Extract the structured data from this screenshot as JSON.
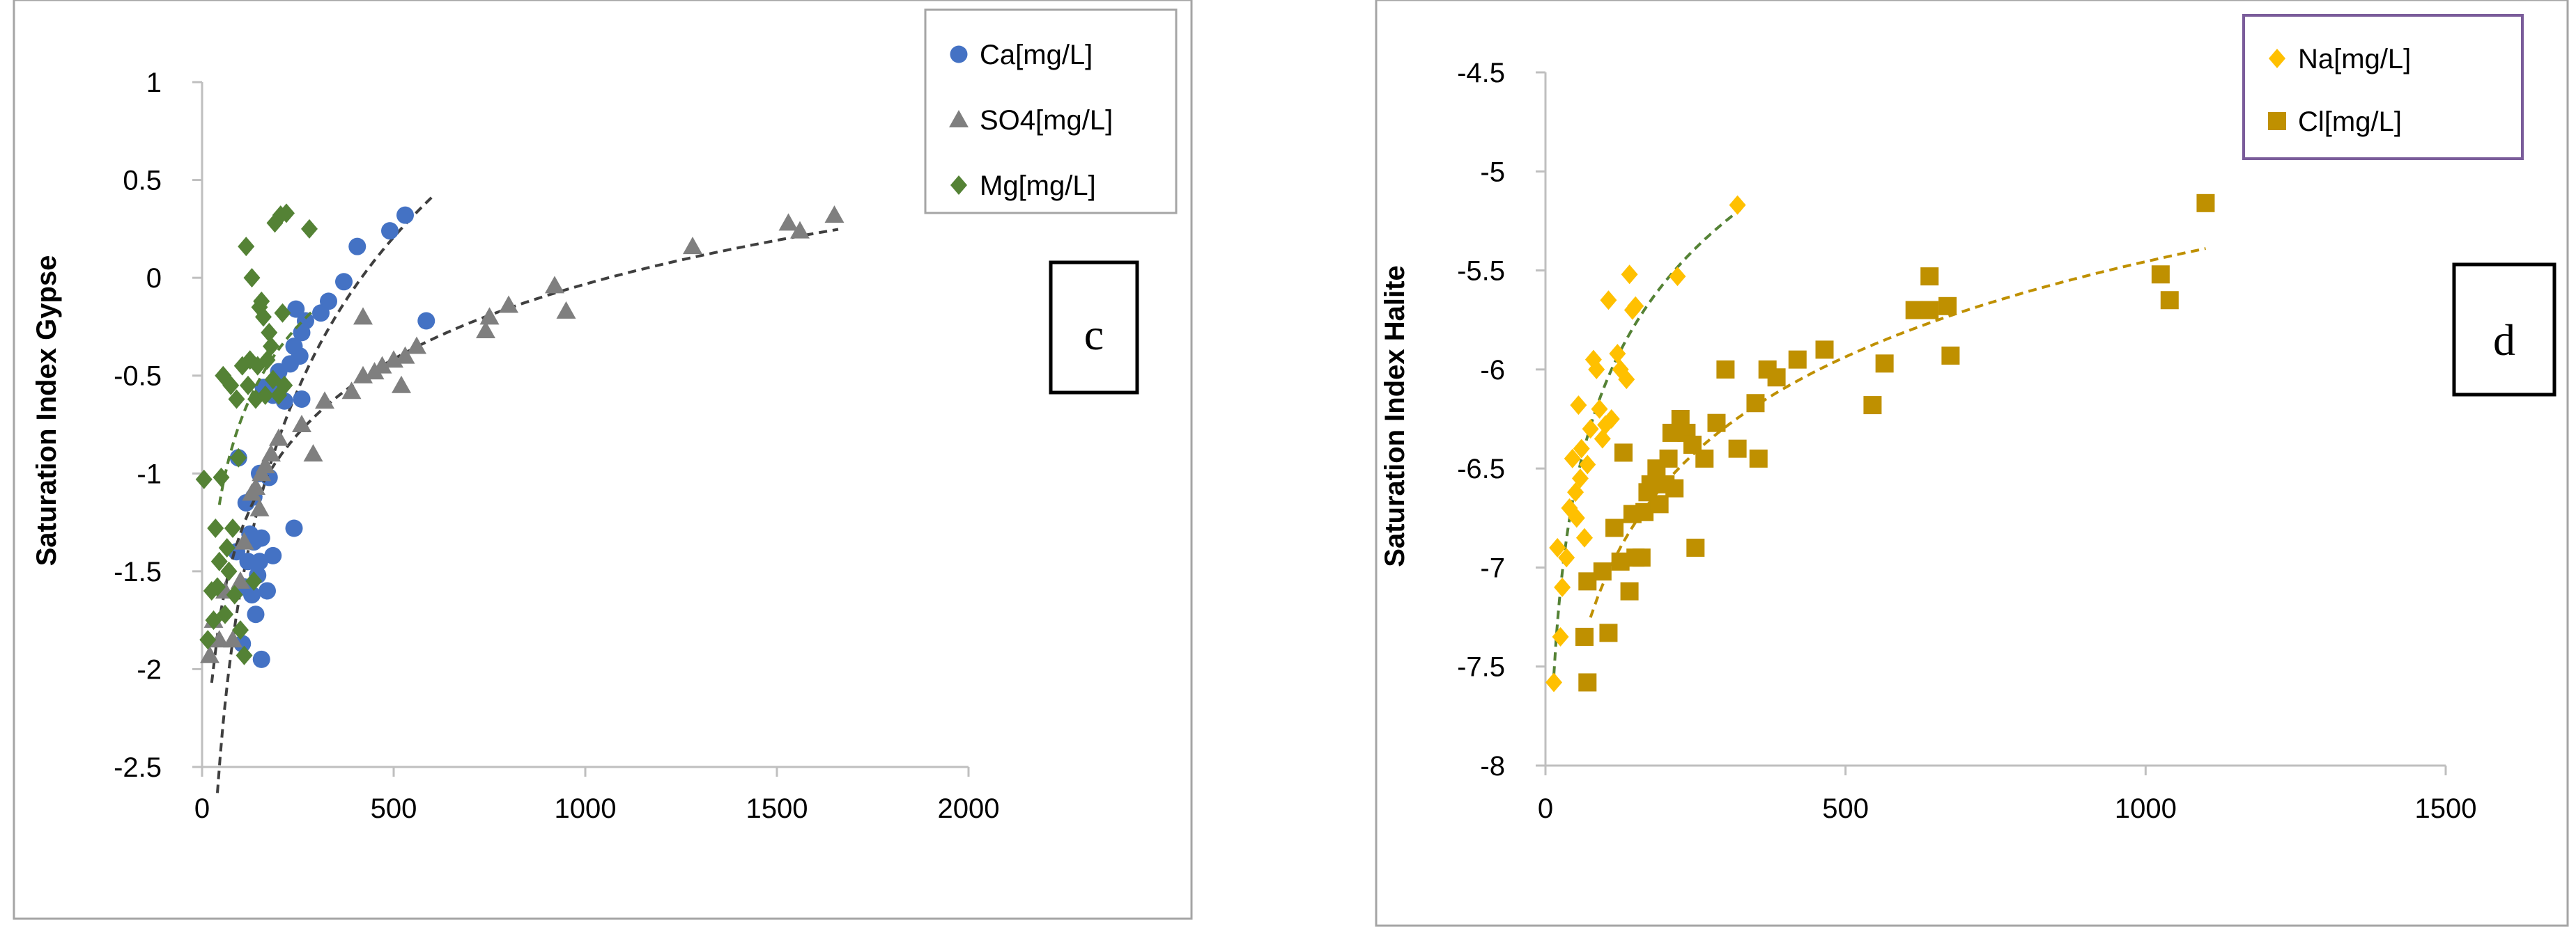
{
  "chart_data": [
    {
      "type": "scatter",
      "panel_label": "c",
      "title": "",
      "xlabel": "",
      "ylabel": "Saturation Index Gypse",
      "xlim": [
        0,
        2000
      ],
      "ylim": [
        -2.5,
        1
      ],
      "x_ticks": [
        0,
        500,
        1000,
        1500,
        2000
      ],
      "y_ticks": [
        -2.5,
        -2,
        -1.5,
        -1,
        -0.5,
        0,
        0.5,
        1
      ],
      "x_tick_labels": [
        "0",
        "500",
        "1000",
        "1500",
        "2000"
      ],
      "y_tick_labels": [
        "-2.5",
        "-2",
        "-1.5",
        "-1",
        "-0.5",
        "0",
        "0.5",
        "1"
      ],
      "grid": false,
      "legend_position": "top-right",
      "series": [
        {
          "name": "Ca[mg/L]",
          "marker": "circle",
          "color": "#4472C4",
          "trend_color": "#3F3F3F",
          "trend_x_range": [
            40,
            600
          ],
          "points": [
            [
              105,
              -1.87
            ],
            [
              130,
              -1.62
            ],
            [
              110,
              -1.58
            ],
            [
              155,
              -1.95
            ],
            [
              170,
              -1.6
            ],
            [
              140,
              -1.72
            ],
            [
              145,
              -1.52
            ],
            [
              120,
              -1.45
            ],
            [
              150,
              -1.45
            ],
            [
              185,
              -1.42
            ],
            [
              90,
              -1.4
            ],
            [
              135,
              -1.35
            ],
            [
              155,
              -1.33
            ],
            [
              125,
              -1.31
            ],
            [
              240,
              -1.28
            ],
            [
              115,
              -1.15
            ],
            [
              135,
              -1.12
            ],
            [
              175,
              -1.02
            ],
            [
              150,
              -1.0
            ],
            [
              95,
              -0.92
            ],
            [
              215,
              -0.63
            ],
            [
              185,
              -0.6
            ],
            [
              260,
              -0.62
            ],
            [
              160,
              -0.56
            ],
            [
              195,
              -0.55
            ],
            [
              200,
              -0.48
            ],
            [
              230,
              -0.44
            ],
            [
              255,
              -0.4
            ],
            [
              240,
              -0.35
            ],
            [
              260,
              -0.28
            ],
            [
              270,
              -0.22
            ],
            [
              310,
              -0.18
            ],
            [
              330,
              -0.12
            ],
            [
              245,
              -0.16
            ],
            [
              370,
              -0.02
            ],
            [
              405,
              0.16
            ],
            [
              490,
              0.24
            ],
            [
              530,
              0.32
            ],
            [
              585,
              -0.22
            ]
          ]
        },
        {
          "name": "SO4[mg/L]",
          "marker": "triangle",
          "color": "#7F7F7F",
          "trend_color": "#3F3F3F",
          "trend_x_range": [
            25,
            1660
          ],
          "points": [
            [
              20,
              -1.93
            ],
            [
              30,
              -1.75
            ],
            [
              45,
              -1.85
            ],
            [
              60,
              -1.6
            ],
            [
              80,
              -1.85
            ],
            [
              100,
              -1.55
            ],
            [
              110,
              -1.35
            ],
            [
              130,
              -1.1
            ],
            [
              150,
              -1.18
            ],
            [
              140,
              -1.07
            ],
            [
              155,
              -1.0
            ],
            [
              165,
              -0.96
            ],
            [
              180,
              -0.9
            ],
            [
              200,
              -0.82
            ],
            [
              260,
              -0.75
            ],
            [
              290,
              -0.9
            ],
            [
              320,
              -0.63
            ],
            [
              390,
              -0.58
            ],
            [
              420,
              -0.5
            ],
            [
              450,
              -0.48
            ],
            [
              470,
              -0.45
            ],
            [
              500,
              -0.42
            ],
            [
              520,
              -0.55
            ],
            [
              530,
              -0.4
            ],
            [
              560,
              -0.35
            ],
            [
              420,
              -0.2
            ],
            [
              740,
              -0.27
            ],
            [
              750,
              -0.2
            ],
            [
              800,
              -0.14
            ],
            [
              920,
              -0.04
            ],
            [
              950,
              -0.17
            ],
            [
              1280,
              0.16
            ],
            [
              1530,
              0.28
            ],
            [
              1560,
              0.24
            ],
            [
              1650,
              0.32
            ]
          ]
        },
        {
          "name": "Mg[mg/L]",
          "marker": "diamond",
          "color": "#548235",
          "trend_color": "#548235",
          "trend_x_range": [
            45,
            290
          ],
          "points": [
            [
              5,
              -1.03
            ],
            [
              15,
              -1.85
            ],
            [
              25,
              -1.6
            ],
            [
              30,
              -1.75
            ],
            [
              35,
              -1.28
            ],
            [
              40,
              -1.58
            ],
            [
              45,
              -1.45
            ],
            [
              50,
              -1.02
            ],
            [
              55,
              -0.5
            ],
            [
              60,
              -1.72
            ],
            [
              65,
              -1.38
            ],
            [
              70,
              -1.5
            ],
            [
              75,
              -0.55
            ],
            [
              80,
              -1.28
            ],
            [
              85,
              -1.62
            ],
            [
              90,
              -0.62
            ],
            [
              95,
              -0.92
            ],
            [
              100,
              -1.8
            ],
            [
              105,
              -0.45
            ],
            [
              110,
              -1.93
            ],
            [
              115,
              0.16
            ],
            [
              120,
              -0.55
            ],
            [
              125,
              -0.42
            ],
            [
              130,
              0.0
            ],
            [
              135,
              -1.55
            ],
            [
              140,
              -0.62
            ],
            [
              145,
              -0.45
            ],
            [
              150,
              -0.15
            ],
            [
              155,
              -0.12
            ],
            [
              160,
              -0.2
            ],
            [
              165,
              -0.6
            ],
            [
              170,
              -0.42
            ],
            [
              175,
              -0.28
            ],
            [
              180,
              -0.35
            ],
            [
              185,
              -0.52
            ],
            [
              190,
              0.28
            ],
            [
              200,
              -0.6
            ],
            [
              205,
              0.32
            ],
            [
              210,
              -0.18
            ],
            [
              215,
              -0.55
            ],
            [
              220,
              0.33
            ],
            [
              280,
              0.25
            ]
          ]
        }
      ]
    },
    {
      "type": "scatter",
      "panel_label": "d",
      "title": "",
      "xlabel": "",
      "ylabel": "Saturation Index Halite",
      "xlim": [
        0,
        1500
      ],
      "ylim": [
        -8,
        -4.5
      ],
      "x_ticks": [
        0,
        500,
        1000,
        1500
      ],
      "y_ticks": [
        -8,
        -7.5,
        -7,
        -6.5,
        -6,
        -5.5,
        -5,
        -4.5
      ],
      "x_tick_labels": [
        "0",
        "500",
        "1000",
        "1500"
      ],
      "y_tick_labels": [
        "-8",
        "-7.5",
        "-7",
        "-6.5",
        "-6",
        "-5.5",
        "-5",
        "-4.5"
      ],
      "grid": false,
      "legend_position": "top-right",
      "series": [
        {
          "name": "Na[mg/L]",
          "marker": "diamond",
          "color": "#FFC000",
          "trend_color": "#548235",
          "trend_x_range": [
            14,
            325
          ],
          "points": [
            [
              14,
              -7.58
            ],
            [
              20,
              -6.9
            ],
            [
              25,
              -7.35
            ],
            [
              28,
              -7.1
            ],
            [
              35,
              -6.95
            ],
            [
              40,
              -6.7
            ],
            [
              45,
              -6.45
            ],
            [
              50,
              -6.62
            ],
            [
              52,
              -6.75
            ],
            [
              55,
              -6.18
            ],
            [
              58,
              -6.55
            ],
            [
              60,
              -6.4
            ],
            [
              65,
              -6.85
            ],
            [
              70,
              -6.48
            ],
            [
              75,
              -6.3
            ],
            [
              80,
              -5.95
            ],
            [
              85,
              -6.0
            ],
            [
              90,
              -6.2
            ],
            [
              95,
              -6.35
            ],
            [
              100,
              -6.28
            ],
            [
              105,
              -5.65
            ],
            [
              110,
              -6.25
            ],
            [
              120,
              -5.92
            ],
            [
              125,
              -6.0
            ],
            [
              135,
              -6.05
            ],
            [
              140,
              -5.52
            ],
            [
              145,
              -5.7
            ],
            [
              150,
              -5.68
            ],
            [
              220,
              -5.53
            ],
            [
              320,
              -5.17
            ]
          ]
        },
        {
          "name": "Cl[mg/L]",
          "marker": "square",
          "color": "#BF9000",
          "trend_color": "#BF9000",
          "trend_x_range": [
            75,
            1100
          ],
          "points": [
            [
              70,
              -7.58
            ],
            [
              65,
              -7.35
            ],
            [
              70,
              -7.07
            ],
            [
              95,
              -7.02
            ],
            [
              105,
              -7.33
            ],
            [
              115,
              -6.8
            ],
            [
              125,
              -6.97
            ],
            [
              130,
              -6.42
            ],
            [
              140,
              -7.12
            ],
            [
              145,
              -6.73
            ],
            [
              150,
              -6.95
            ],
            [
              160,
              -6.95
            ],
            [
              165,
              -6.72
            ],
            [
              170,
              -6.62
            ],
            [
              175,
              -6.58
            ],
            [
              185,
              -6.5
            ],
            [
              190,
              -6.68
            ],
            [
              200,
              -6.58
            ],
            [
              205,
              -6.45
            ],
            [
              210,
              -6.32
            ],
            [
              215,
              -6.6
            ],
            [
              225,
              -6.25
            ],
            [
              235,
              -6.32
            ],
            [
              245,
              -6.38
            ],
            [
              250,
              -6.9
            ],
            [
              265,
              -6.45
            ],
            [
              285,
              -6.27
            ],
            [
              300,
              -6.0
            ],
            [
              320,
              -6.4
            ],
            [
              350,
              -6.17
            ],
            [
              355,
              -6.45
            ],
            [
              370,
              -6.0
            ],
            [
              385,
              -6.04
            ],
            [
              420,
              -5.95
            ],
            [
              465,
              -5.9
            ],
            [
              545,
              -6.18
            ],
            [
              565,
              -5.97
            ],
            [
              615,
              -5.7
            ],
            [
              640,
              -5.7
            ],
            [
              640,
              -5.53
            ],
            [
              670,
              -5.68
            ],
            [
              675,
              -5.93
            ],
            [
              1025,
              -5.52
            ],
            [
              1040,
              -5.65
            ],
            [
              1100,
              -5.16
            ]
          ]
        }
      ]
    }
  ],
  "legend_border_colors": [
    "#A5A5A5",
    "#7A5C9A"
  ],
  "plot_border_color": "#A5A5A5",
  "axis_color": "#BFBFBF"
}
